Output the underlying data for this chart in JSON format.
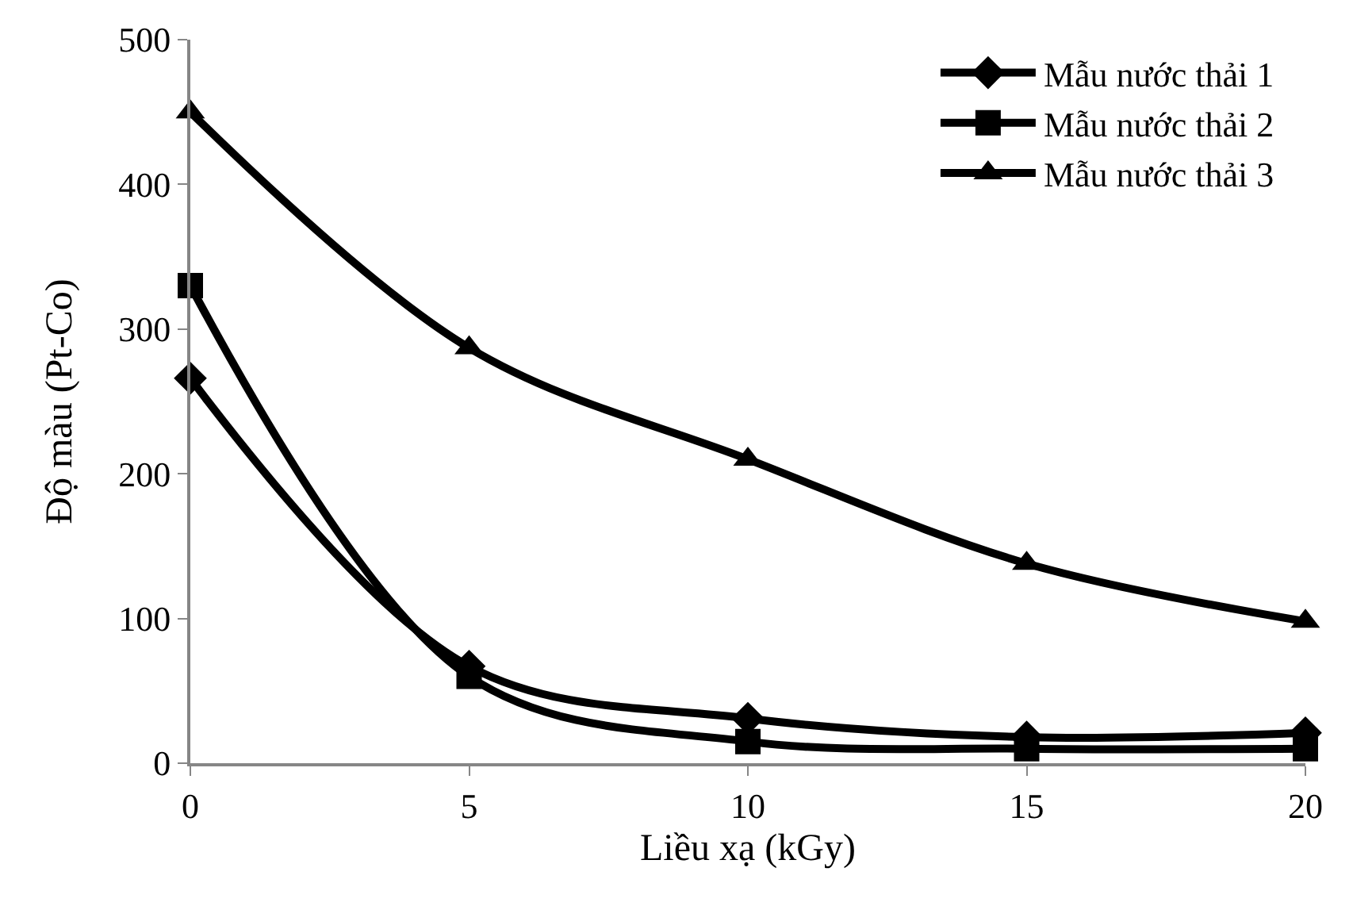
{
  "chart_data": {
    "type": "line",
    "xlabel": "Liều xạ (kGy)",
    "ylabel": "Độ màu (Pt-Co)",
    "x": [
      0,
      5,
      10,
      15,
      20
    ],
    "series": [
      {
        "name": "Mẫu nước thải 1",
        "color": "#000000",
        "marker": "diamond",
        "values": [
          266,
          67,
          31,
          18,
          21
        ]
      },
      {
        "name": "Mẫu nước thải 2",
        "color": "#000000",
        "marker": "square",
        "values": [
          330,
          60,
          15,
          10,
          10
        ]
      },
      {
        "name": "Mẫu nước thải 3",
        "color": "#000000",
        "marker": "triangle",
        "values": [
          450,
          287,
          210,
          138,
          98
        ]
      }
    ],
    "xlim": [
      0,
      20
    ],
    "xticks": [
      0,
      5,
      10,
      15,
      20
    ],
    "ylim": [
      0,
      500
    ],
    "yticks": [
      0,
      100,
      200,
      300,
      400,
      500
    ],
    "legend": "top right",
    "line_style": "solid"
  }
}
